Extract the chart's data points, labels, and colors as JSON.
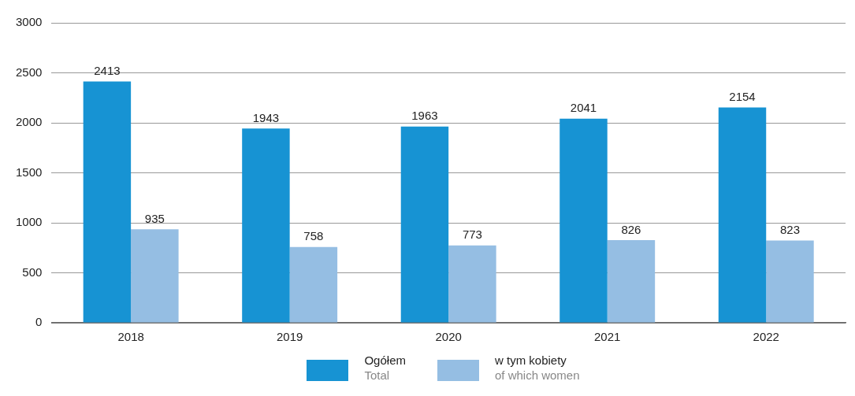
{
  "chart_data": {
    "type": "bar",
    "categories": [
      "2018",
      "2019",
      "2020",
      "2021",
      "2022"
    ],
    "series": [
      {
        "name": "Ogółem\nTotal",
        "color": "#1793d3",
        "values": [
          2413,
          1943,
          1963,
          2041,
          2154
        ]
      },
      {
        "name": "w tym kobiety\nof which women",
        "color": "#95bee3",
        "values": [
          935,
          758,
          773,
          826,
          823
        ]
      }
    ],
    "ylim": [
      0,
      3000
    ],
    "yticks": [
      0,
      500,
      1000,
      1500,
      2000,
      2500,
      3000
    ],
    "grid": "y",
    "data_labels": true,
    "legend": "bottom"
  }
}
